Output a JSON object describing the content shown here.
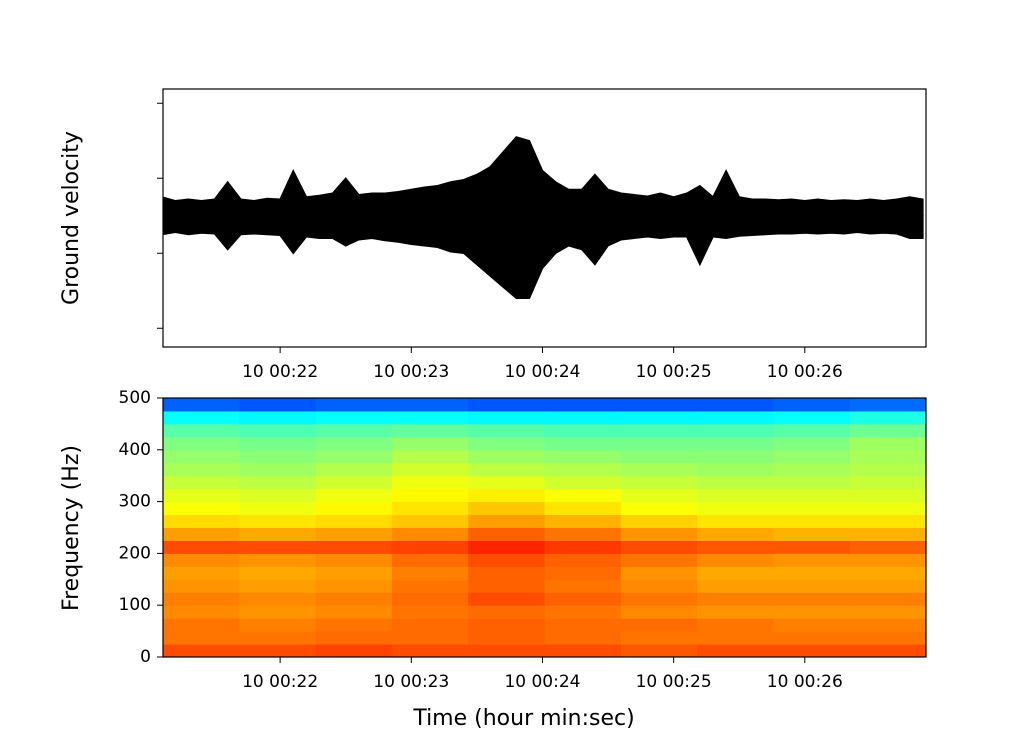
{
  "chart_data": [
    {
      "type": "area",
      "ylabel": "Ground velocity",
      "color": "#000000",
      "xlim": [
        21.107,
        26.924
      ],
      "ylim": [
        -1.75,
        1.69
      ],
      "xticks": [
        {
          "value": 22,
          "label": "10 00:22"
        },
        {
          "value": 23,
          "label": "10 00:23"
        },
        {
          "value": 24,
          "label": "10 00:24"
        },
        {
          "value": 25,
          "label": "10 00:25"
        },
        {
          "value": 26,
          "label": "10 00:26"
        }
      ],
      "yticks": [
        -1.5,
        -0.5,
        0.5,
        1.5
      ],
      "x": [
        21.1,
        21.2,
        21.3,
        21.4,
        21.5,
        21.6,
        21.7,
        21.8,
        21.9,
        22.0,
        22.1,
        22.2,
        22.3,
        22.4,
        22.5,
        22.6,
        22.7,
        22.8,
        22.9,
        23.0,
        23.1,
        23.2,
        23.3,
        23.4,
        23.5,
        23.6,
        23.7,
        23.8,
        23.9,
        24.0,
        24.1,
        24.2,
        24.3,
        24.4,
        24.5,
        24.6,
        24.7,
        24.8,
        24.9,
        25.0,
        25.1,
        25.2,
        25.3,
        25.4,
        25.5,
        25.6,
        25.7,
        25.8,
        25.9,
        26.0,
        26.1,
        26.2,
        26.3,
        26.4,
        26.5,
        26.6,
        26.7,
        26.8,
        26.9
      ],
      "upper": [
        0.25,
        0.2,
        0.22,
        0.2,
        0.22,
        0.45,
        0.22,
        0.2,
        0.23,
        0.22,
        0.6,
        0.25,
        0.27,
        0.3,
        0.5,
        0.28,
        0.3,
        0.3,
        0.32,
        0.35,
        0.38,
        0.4,
        0.45,
        0.48,
        0.55,
        0.65,
        0.85,
        1.05,
        1.0,
        0.6,
        0.45,
        0.35,
        0.35,
        0.55,
        0.35,
        0.3,
        0.28,
        0.26,
        0.3,
        0.25,
        0.3,
        0.4,
        0.25,
        0.6,
        0.25,
        0.22,
        0.22,
        0.21,
        0.22,
        0.2,
        0.22,
        0.2,
        0.21,
        0.2,
        0.22,
        0.2,
        0.22,
        0.25,
        0.22
      ],
      "lower": [
        -0.25,
        -0.22,
        -0.25,
        -0.23,
        -0.24,
        -0.45,
        -0.25,
        -0.24,
        -0.25,
        -0.26,
        -0.5,
        -0.28,
        -0.3,
        -0.3,
        -0.4,
        -0.32,
        -0.3,
        -0.33,
        -0.35,
        -0.38,
        -0.4,
        -0.42,
        -0.48,
        -0.5,
        -0.65,
        -0.8,
        -0.95,
        -1.1,
        -1.1,
        -0.7,
        -0.5,
        -0.4,
        -0.45,
        -0.65,
        -0.4,
        -0.32,
        -0.3,
        -0.28,
        -0.3,
        -0.28,
        -0.28,
        -0.65,
        -0.28,
        -0.3,
        -0.27,
        -0.26,
        -0.25,
        -0.24,
        -0.24,
        -0.23,
        -0.24,
        -0.23,
        -0.24,
        -0.22,
        -0.24,
        -0.23,
        -0.24,
        -0.3,
        -0.3
      ]
    },
    {
      "type": "heatmap",
      "ylabel": "Frequency (Hz)",
      "xlabel": "Time (hour min:sec)",
      "colormap": "jet",
      "zlim": [
        0,
        1
      ],
      "xlim": [
        21.107,
        26.924
      ],
      "ylim": [
        0,
        500
      ],
      "xticks": [
        {
          "value": 22,
          "label": "10 00:22"
        },
        {
          "value": 23,
          "label": "10 00:23"
        },
        {
          "value": 24,
          "label": "10 00:24"
        },
        {
          "value": 25,
          "label": "10 00:25"
        },
        {
          "value": 26,
          "label": "10 00:26"
        }
      ],
      "yticks": [
        0,
        100,
        200,
        300,
        400,
        500
      ],
      "x": [
        21.398,
        21.98,
        22.562,
        23.143,
        23.725,
        24.307,
        24.889,
        25.47,
        26.052,
        26.633
      ],
      "y": [
        12.5,
        37.5,
        62.5,
        87.5,
        112.5,
        137.5,
        162.5,
        187.5,
        212.5,
        237.5,
        262.5,
        287.5,
        312.5,
        337.5,
        362.5,
        387.5,
        412.5,
        437.5,
        462.5,
        487.5
      ],
      "z": [
        [
          0.8,
          0.8,
          0.81,
          0.8,
          0.8,
          0.8,
          0.79,
          0.8,
          0.8,
          0.8
        ],
        [
          0.76,
          0.76,
          0.77,
          0.77,
          0.78,
          0.77,
          0.76,
          0.76,
          0.76,
          0.76
        ],
        [
          0.76,
          0.75,
          0.76,
          0.77,
          0.78,
          0.77,
          0.77,
          0.76,
          0.75,
          0.75
        ],
        [
          0.74,
          0.73,
          0.74,
          0.76,
          0.77,
          0.76,
          0.74,
          0.73,
          0.73,
          0.73
        ],
        [
          0.75,
          0.74,
          0.75,
          0.77,
          0.8,
          0.78,
          0.76,
          0.75,
          0.75,
          0.75
        ],
        [
          0.73,
          0.72,
          0.73,
          0.76,
          0.78,
          0.76,
          0.74,
          0.72,
          0.72,
          0.72
        ],
        [
          0.72,
          0.71,
          0.72,
          0.75,
          0.78,
          0.77,
          0.73,
          0.71,
          0.71,
          0.71
        ],
        [
          0.74,
          0.73,
          0.74,
          0.77,
          0.8,
          0.78,
          0.76,
          0.74,
          0.73,
          0.73
        ],
        [
          0.8,
          0.8,
          0.8,
          0.81,
          0.84,
          0.82,
          0.8,
          0.79,
          0.79,
          0.78
        ],
        [
          0.72,
          0.71,
          0.72,
          0.74,
          0.78,
          0.76,
          0.73,
          0.71,
          0.7,
          0.7
        ],
        [
          0.66,
          0.65,
          0.66,
          0.68,
          0.72,
          0.7,
          0.67,
          0.65,
          0.65,
          0.65
        ],
        [
          0.62,
          0.61,
          0.63,
          0.65,
          0.68,
          0.65,
          0.62,
          0.61,
          0.61,
          0.61
        ],
        [
          0.6,
          0.59,
          0.61,
          0.63,
          0.64,
          0.62,
          0.6,
          0.59,
          0.59,
          0.59
        ],
        [
          0.57,
          0.56,
          0.58,
          0.61,
          0.6,
          0.58,
          0.57,
          0.56,
          0.56,
          0.57
        ],
        [
          0.54,
          0.53,
          0.55,
          0.58,
          0.56,
          0.55,
          0.54,
          0.53,
          0.54,
          0.55
        ],
        [
          0.52,
          0.51,
          0.52,
          0.55,
          0.53,
          0.52,
          0.51,
          0.51,
          0.52,
          0.54
        ],
        [
          0.5,
          0.49,
          0.5,
          0.52,
          0.5,
          0.49,
          0.49,
          0.49,
          0.5,
          0.53
        ],
        [
          0.46,
          0.45,
          0.46,
          0.47,
          0.46,
          0.45,
          0.45,
          0.45,
          0.46,
          0.48
        ],
        [
          0.38,
          0.37,
          0.38,
          0.38,
          0.37,
          0.37,
          0.37,
          0.37,
          0.38,
          0.4
        ],
        [
          0.22,
          0.21,
          0.22,
          0.22,
          0.21,
          0.21,
          0.21,
          0.21,
          0.22,
          0.23
        ]
      ]
    }
  ]
}
